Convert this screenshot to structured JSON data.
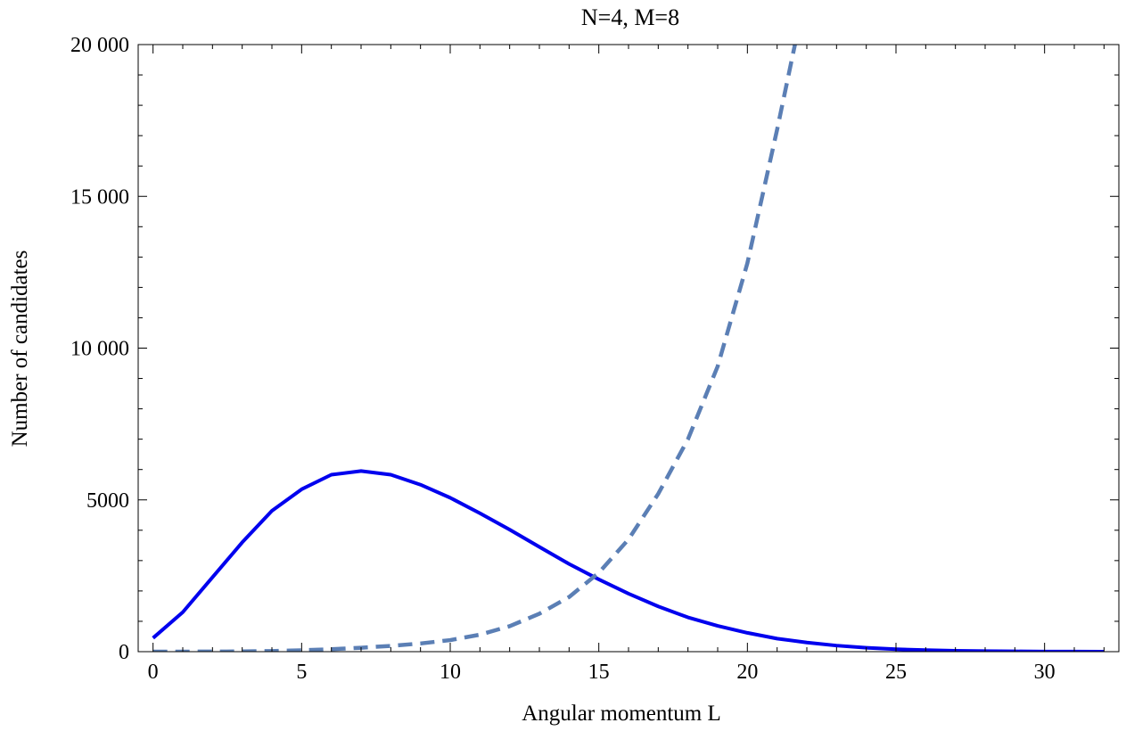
{
  "chart_data": {
    "type": "line",
    "title": "N=4, M=8",
    "xlabel": "Angular momentum L",
    "ylabel": "Number of candidates",
    "xlim": [
      -0.5,
      32.5
    ],
    "ylim": [
      0,
      20000
    ],
    "x_ticks": [
      0,
      5,
      10,
      15,
      20,
      25,
      30
    ],
    "x_tick_labels": [
      "0",
      "5",
      "10",
      "15",
      "20",
      "25",
      "30"
    ],
    "y_ticks": [
      0,
      5000,
      10000,
      15000,
      20000
    ],
    "y_tick_labels": [
      "0",
      "5000",
      "10 000",
      "15 000",
      "20 000"
    ],
    "grid": false,
    "legend": "none",
    "series": [
      {
        "style": "solid",
        "color": "#0000ee",
        "x": [
          0,
          1,
          2,
          3,
          4,
          5,
          6,
          7,
          8,
          9,
          10,
          11,
          12,
          13,
          14,
          15,
          16,
          17,
          18,
          19,
          20,
          21,
          22,
          23,
          24,
          25,
          26,
          27,
          28,
          29,
          30,
          31,
          32
        ],
        "values": [
          450,
          1300,
          2450,
          3600,
          4640,
          5350,
          5830,
          5950,
          5830,
          5500,
          5070,
          4560,
          4020,
          3450,
          2890,
          2380,
          1910,
          1490,
          1130,
          850,
          620,
          430,
          300,
          200,
          130,
          80,
          50,
          30,
          18,
          10,
          5,
          2,
          1
        ]
      },
      {
        "style": "dashed",
        "color": "#5b7fb5",
        "x": [
          0,
          1,
          2,
          3,
          4,
          5,
          6,
          7,
          8,
          9,
          10,
          11,
          12,
          13,
          14,
          15,
          16,
          17,
          18,
          19,
          20,
          21,
          21.6
        ],
        "values": [
          0,
          1,
          3,
          8,
          20,
          45,
          80,
          130,
          190,
          270,
          380,
          560,
          840,
          1250,
          1800,
          2600,
          3700,
          5200,
          7000,
          9400,
          12800,
          17200,
          20000
        ]
      }
    ]
  }
}
